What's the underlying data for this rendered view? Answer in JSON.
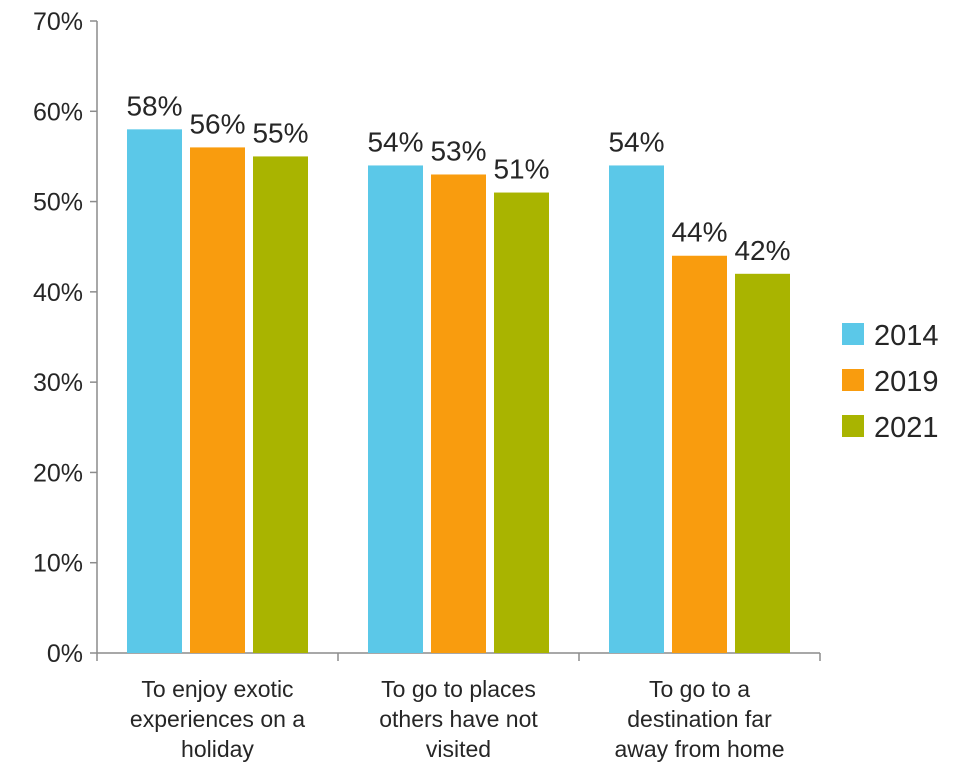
{
  "chart_data": {
    "type": "bar",
    "title": "",
    "xlabel": "",
    "ylabel": "",
    "ylim": [
      0,
      70
    ],
    "y_ticks": [
      "0%",
      "10%",
      "20%",
      "30%",
      "40%",
      "50%",
      "60%",
      "70%"
    ],
    "y_tick_values": [
      0,
      10,
      20,
      30,
      40,
      50,
      60,
      70
    ],
    "categories": [
      [
        "To enjoy exotic",
        "experiences on a",
        "holiday"
      ],
      [
        "To go to places",
        "others have not",
        "visited"
      ],
      [
        "To go to a",
        "destination far",
        "away from home"
      ]
    ],
    "series": [
      {
        "name": "2014",
        "color": "#5bc8e8",
        "values": [
          58,
          54,
          54
        ],
        "labels": [
          "58%",
          "54%",
          "54%"
        ]
      },
      {
        "name": "2019",
        "color": "#f99c0e",
        "values": [
          56,
          53,
          44
        ],
        "labels": [
          "56%",
          "53%",
          "44%"
        ]
      },
      {
        "name": "2021",
        "color": "#a9b400",
        "values": [
          55,
          51,
          42
        ],
        "labels": [
          "55%",
          "51%",
          "42%"
        ]
      }
    ],
    "grid": false,
    "legend_position": "right"
  }
}
